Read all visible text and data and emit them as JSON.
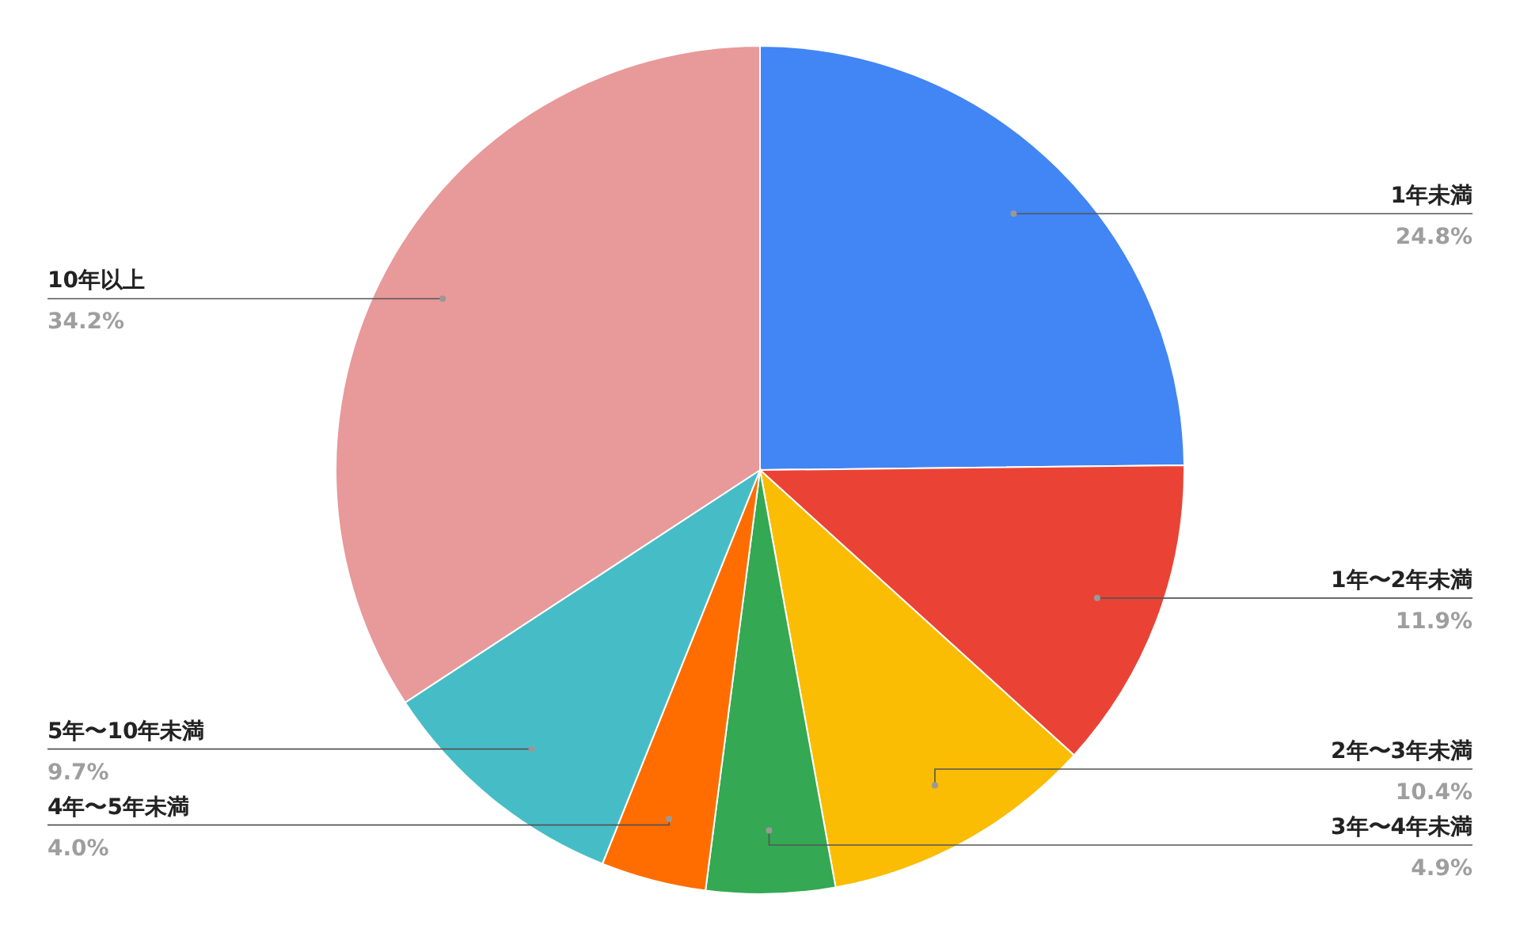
{
  "chart_data": {
    "type": "pie",
    "categories": [
      "1年未満",
      "1年〜2年未満",
      "2年〜3年未満",
      "3年〜4年未満",
      "4年〜5年未満",
      "5年〜10年未満",
      "10年以上"
    ],
    "values": [
      24.8,
      11.9,
      10.4,
      4.9,
      4.0,
      9.7,
      34.2
    ],
    "value_labels": [
      "24.8%",
      "11.9%",
      "10.4%",
      "4.9%",
      "4.0%",
      "9.7%",
      "34.2%"
    ],
    "colors": [
      "#4285f4",
      "#ea4335",
      "#fbbc04",
      "#34a853",
      "#ff6d01",
      "#46bdc6",
      "#e8999a"
    ]
  }
}
